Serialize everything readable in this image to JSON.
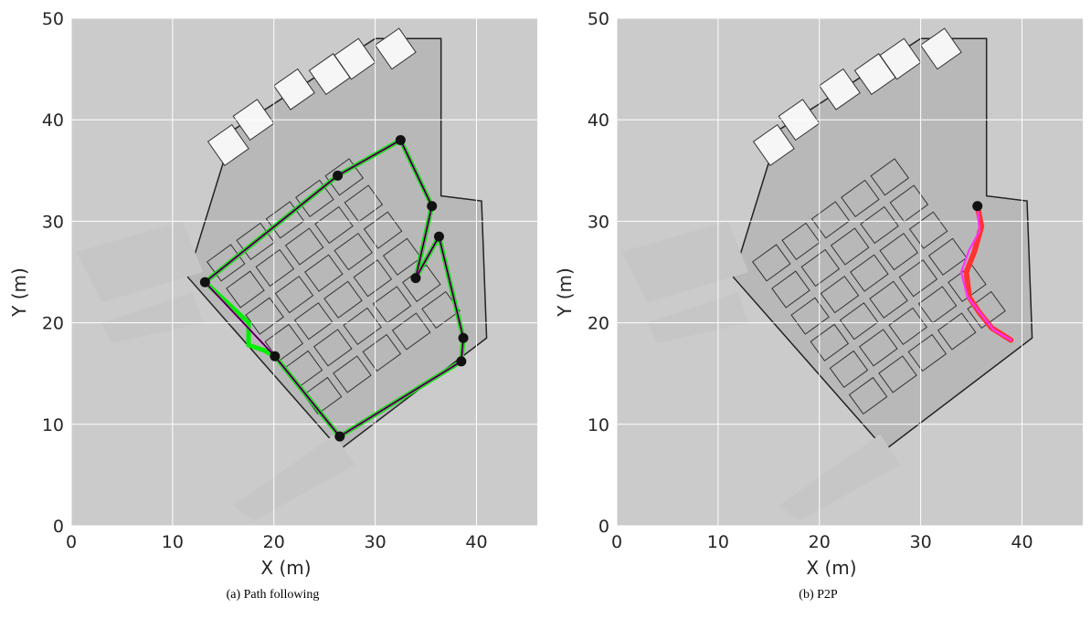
{
  "chart_data": [
    {
      "type": "line",
      "caption": "(a) Path following",
      "xlabel": "X (m)",
      "ylabel": "Y (m)",
      "xlim": [
        0,
        46
      ],
      "ylim": [
        0,
        50
      ],
      "xticks": [
        0,
        10,
        20,
        30,
        40
      ],
      "yticks": [
        0,
        10,
        20,
        30,
        40,
        50
      ],
      "grid": true,
      "background": "occupancy grid map (gray)",
      "colors": {
        "plot_bg": "#cbcbcb",
        "map_floor": "#b8b8b8",
        "map_wall": "#222222",
        "grid": "#ffffff"
      },
      "series": [
        {
          "color": "#00ee00",
          "width": 5,
          "x": [
            13.2,
            17.5,
            17.5,
            19.0,
            20.1,
            26.5,
            38.5,
            38.7,
            36.3,
            34.0,
            35.6,
            32.5,
            26.3,
            13.2
          ],
          "y": [
            24.0,
            20.0,
            17.8,
            17.3,
            16.7,
            8.8,
            16.2,
            18.5,
            28.5,
            24.4,
            31.5,
            38.0,
            34.5,
            24.0
          ]
        },
        {
          "color": "#ff00ff",
          "width": 2.2,
          "x": [
            13.2,
            20.1,
            26.5,
            38.5,
            38.7,
            36.3,
            34.0,
            35.6,
            32.5,
            26.3,
            13.2
          ],
          "y": [
            24.0,
            16.7,
            8.8,
            16.2,
            18.5,
            28.5,
            24.4,
            31.5,
            38.0,
            34.5,
            24.0
          ]
        },
        {
          "color": "#000000",
          "width": 1.2,
          "x": [
            13.2,
            20.1,
            26.5,
            38.5,
            38.7,
            36.3,
            34.0,
            35.6,
            32.5,
            26.3,
            13.2
          ],
          "y": [
            24.0,
            16.7,
            8.8,
            16.2,
            18.5,
            28.5,
            24.4,
            31.5,
            38.0,
            34.5,
            24.0
          ]
        }
      ],
      "waypoints": {
        "color": "#111111",
        "x": [
          13.2,
          20.1,
          26.5,
          38.5,
          38.7,
          36.3,
          34.0,
          35.6,
          32.5,
          26.3
        ],
        "y": [
          24.0,
          16.7,
          8.8,
          16.2,
          18.5,
          28.5,
          24.4,
          31.5,
          38.0,
          34.5
        ]
      }
    },
    {
      "type": "line",
      "caption": "(b) P2P",
      "xlabel": "X (m)",
      "ylabel": "Y (m)",
      "xlim": [
        0,
        46
      ],
      "ylim": [
        0,
        50
      ],
      "xticks": [
        0,
        10,
        20,
        30,
        40
      ],
      "yticks": [
        0,
        10,
        20,
        30,
        40,
        50
      ],
      "grid": true,
      "background": "occupancy grid map (gray)",
      "colors": {
        "plot_bg": "#cbcbcb",
        "map_floor": "#b8b8b8",
        "map_wall": "#222222",
        "grid": "#ffffff"
      },
      "series": [
        {
          "color": "#ff3333",
          "width": 6,
          "x": [
            35.6,
            36.0,
            35.3,
            34.5,
            34.8,
            35.8,
            37.0,
            38.9
          ],
          "y": [
            31.5,
            29.5,
            27.0,
            25.0,
            22.5,
            21.0,
            19.5,
            18.3
          ]
        },
        {
          "color": "#ff33ff",
          "width": 2.2,
          "x": [
            35.6,
            35.8,
            34.8,
            34.0,
            34.6,
            36.0,
            37.2,
            38.9
          ],
          "y": [
            31.5,
            29.0,
            27.2,
            25.0,
            22.6,
            20.8,
            19.3,
            18.3
          ]
        }
      ],
      "waypoints": {
        "color": "#111111",
        "x": [
          35.6
        ],
        "y": [
          31.5
        ]
      }
    }
  ]
}
